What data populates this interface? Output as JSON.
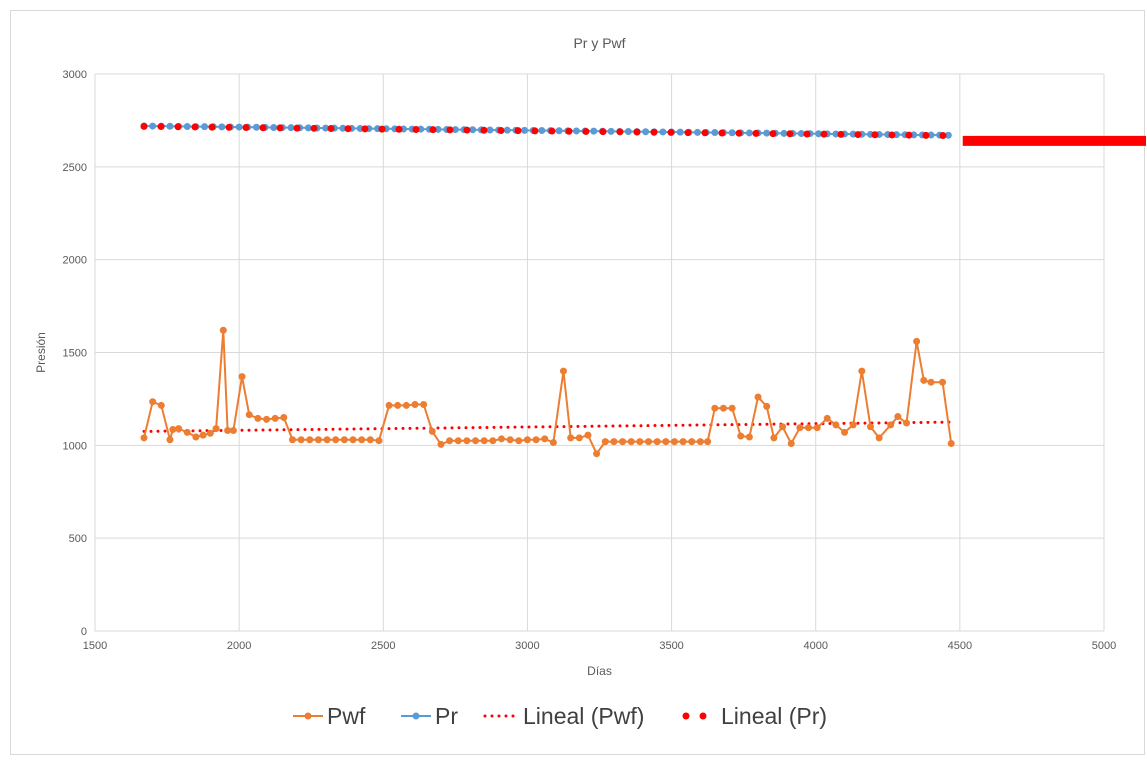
{
  "chart_data": {
    "type": "line",
    "title": "Pr y Pwf",
    "xlabel": "Días",
    "ylabel": "Presión",
    "xlim": [
      1500,
      5000
    ],
    "ylim": [
      0,
      3000
    ],
    "xticks": [
      1500,
      2000,
      2500,
      3000,
      3500,
      4000,
      4500,
      5000
    ],
    "yticks": [
      0,
      500,
      1000,
      1500,
      2000,
      2500,
      3000
    ],
    "grid": true,
    "legend_position": "bottom",
    "series": [
      {
        "name": "Pwf",
        "color": "#ED7D31",
        "style": "line-markers",
        "x": [
          1670,
          1700,
          1730,
          1760,
          1770,
          1790,
          1820,
          1850,
          1875,
          1900,
          1920,
          1945,
          1960,
          1980,
          2010,
          2035,
          2065,
          2095,
          2125,
          2155,
          2185,
          2215,
          2245,
          2275,
          2305,
          2335,
          2365,
          2395,
          2425,
          2455,
          2485,
          2520,
          2550,
          2580,
          2610,
          2640,
          2670,
          2700,
          2730,
          2760,
          2790,
          2820,
          2850,
          2880,
          2910,
          2940,
          2970,
          3000,
          3030,
          3060,
          3090,
          3125,
          3150,
          3180,
          3210,
          3240,
          3270,
          3300,
          3330,
          3360,
          3390,
          3420,
          3450,
          3480,
          3510,
          3540,
          3570,
          3600,
          3625,
          3650,
          3680,
          3710,
          3740,
          3770,
          3800,
          3830,
          3855,
          3885,
          3915,
          3945,
          3975,
          4005,
          4040,
          4070,
          4100,
          4130,
          4160,
          4190,
          4220,
          4260,
          4285,
          4315,
          4350,
          4375,
          4400,
          4440,
          4470
        ],
        "y": [
          1040,
          1235,
          1215,
          1030,
          1085,
          1090,
          1070,
          1045,
          1055,
          1065,
          1090,
          1620,
          1080,
          1080,
          1370,
          1165,
          1145,
          1140,
          1145,
          1150,
          1030,
          1030,
          1030,
          1030,
          1030,
          1030,
          1030,
          1030,
          1030,
          1030,
          1025,
          1215,
          1215,
          1215,
          1220,
          1220,
          1075,
          1005,
          1025,
          1025,
          1025,
          1025,
          1025,
          1025,
          1035,
          1030,
          1025,
          1030,
          1030,
          1035,
          1015,
          1400,
          1040,
          1040,
          1055,
          955,
          1020,
          1020,
          1020,
          1020,
          1020,
          1020,
          1020,
          1020,
          1020,
          1020,
          1020,
          1020,
          1020,
          1200,
          1200,
          1200,
          1050,
          1045,
          1260,
          1210,
          1040,
          1100,
          1010,
          1095,
          1095,
          1095,
          1145,
          1110,
          1070,
          1110,
          1400,
          1100,
          1040,
          1110,
          1155,
          1120,
          1560,
          1350,
          1340,
          1340,
          1010
        ]
      },
      {
        "name": "Pr",
        "color": "#5B9BD5",
        "style": "line-markers",
        "x_start": 1670,
        "x_end": 4470,
        "x_step": 30,
        "y_start": 2720,
        "y_end": 2670
      },
      {
        "name": "Lineal (Pwf)",
        "color": "#FF0000",
        "style": "dotted-trend",
        "x": [
          1670,
          4470
        ],
        "y": [
          1075,
          1125
        ]
      },
      {
        "name": "Lineal (Pr)",
        "color": "#FF0000",
        "style": "dotted-trend-heavy",
        "x": [
          1670,
          4470
        ],
        "y": [
          2718,
          2668
        ]
      }
    ],
    "annotations": [
      {
        "kind": "red-bar",
        "color": "#FF0000",
        "x_range": [
          4510,
          5000
        ],
        "y": 2640
      }
    ]
  }
}
